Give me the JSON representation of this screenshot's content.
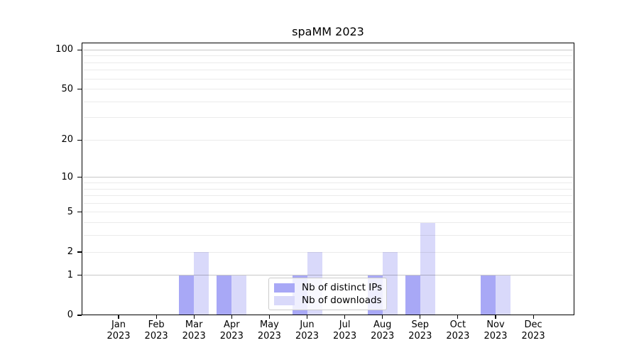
{
  "chart_data": {
    "type": "bar",
    "title": "spaMM 2023",
    "categories": [
      "Jan",
      "Feb",
      "Mar",
      "Apr",
      "May",
      "Jun",
      "Jul",
      "Aug",
      "Sep",
      "Oct",
      "Nov",
      "Dec"
    ],
    "category_year": "2023",
    "series": [
      {
        "name": "Nb of distinct IPs",
        "color": "#a8a8f6",
        "values": [
          0,
          0,
          1,
          1,
          0,
          1,
          0,
          1,
          1,
          0,
          1,
          0
        ]
      },
      {
        "name": "Nb of downloads",
        "color": "#d9d9fa",
        "values": [
          0,
          0,
          2,
          1,
          0,
          2,
          0,
          2,
          4,
          0,
          1,
          0
        ]
      }
    ],
    "xlabel": "",
    "ylabel": "",
    "yscale": "log1p",
    "ylim": [
      0,
      113.5
    ],
    "yticks": [
      0,
      1,
      2,
      5,
      10,
      20,
      50,
      100
    ],
    "grid": {
      "major": [
        1,
        10,
        100
      ],
      "minor": [
        2,
        3,
        4,
        5,
        6,
        7,
        8,
        9,
        20,
        30,
        40,
        50,
        60,
        70,
        80,
        90
      ]
    },
    "legend": {
      "position": "lower-center",
      "entries": [
        "Nb of distinct IPs",
        "Nb of downloads"
      ]
    }
  }
}
